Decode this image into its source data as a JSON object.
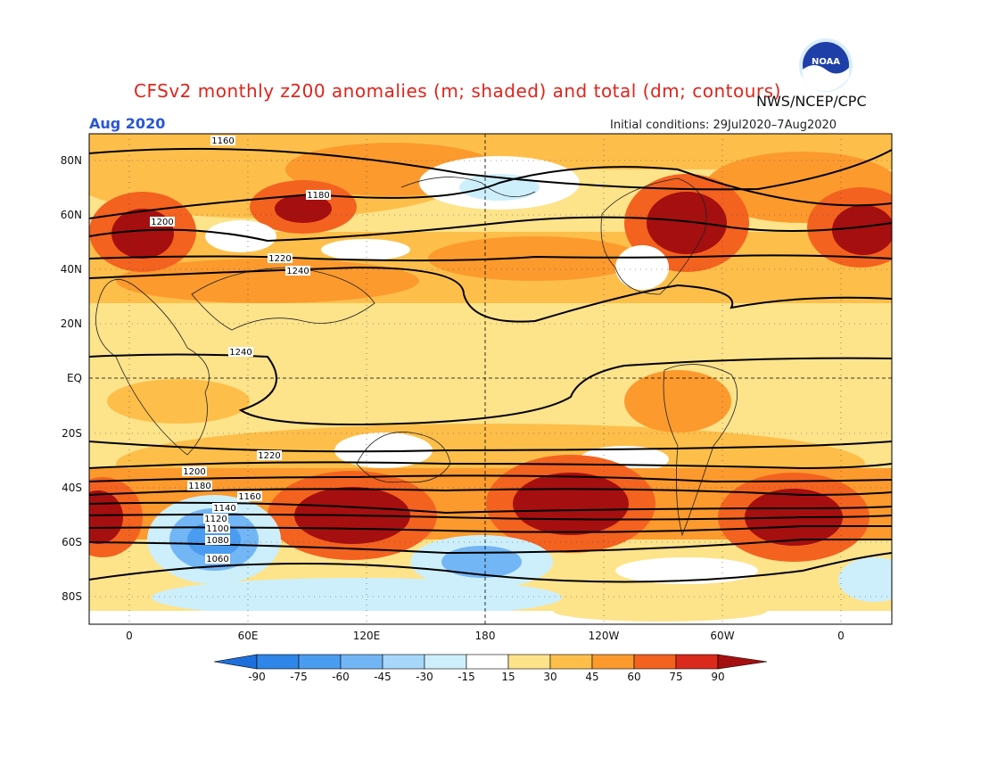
{
  "header": {
    "title": "CFSv2 monthly z200 anomalies (m; shaded) and total (dm; contours)",
    "org": "NWS/NCEP/CPC",
    "month": "Aug 2020",
    "initial_conditions": "Initial conditions: 29Jul2020–7Aug2020",
    "logo_text": "NOAA"
  },
  "axes": {
    "lat_labels": [
      "80N",
      "60N",
      "40N",
      "20N",
      "EQ",
      "20S",
      "40S",
      "60S",
      "80S"
    ],
    "lon_labels": [
      "0",
      "60E",
      "120E",
      "180",
      "120W",
      "60W",
      "0"
    ]
  },
  "colorbar": {
    "labels": [
      "-90",
      "-75",
      "-60",
      "-45",
      "-30",
      "-15",
      "15",
      "30",
      "45",
      "60",
      "75",
      "90"
    ],
    "colors": [
      "#1e6fdc",
      "#2f86e8",
      "#4a9cf0",
      "#73b6f5",
      "#a7d7fa",
      "#cdeffc",
      "#ffffff",
      "#fde38a",
      "#fdbf4a",
      "#fc9a2e",
      "#f4621f",
      "#d92a1d",
      "#a50f0f"
    ]
  },
  "contour_labels": [
    "1160",
    "1180",
    "1200",
    "1220",
    "1240",
    "1240",
    "1220",
    "1200",
    "1180",
    "1160",
    "1140",
    "1120",
    "1100",
    "1080",
    "1060"
  ]
}
